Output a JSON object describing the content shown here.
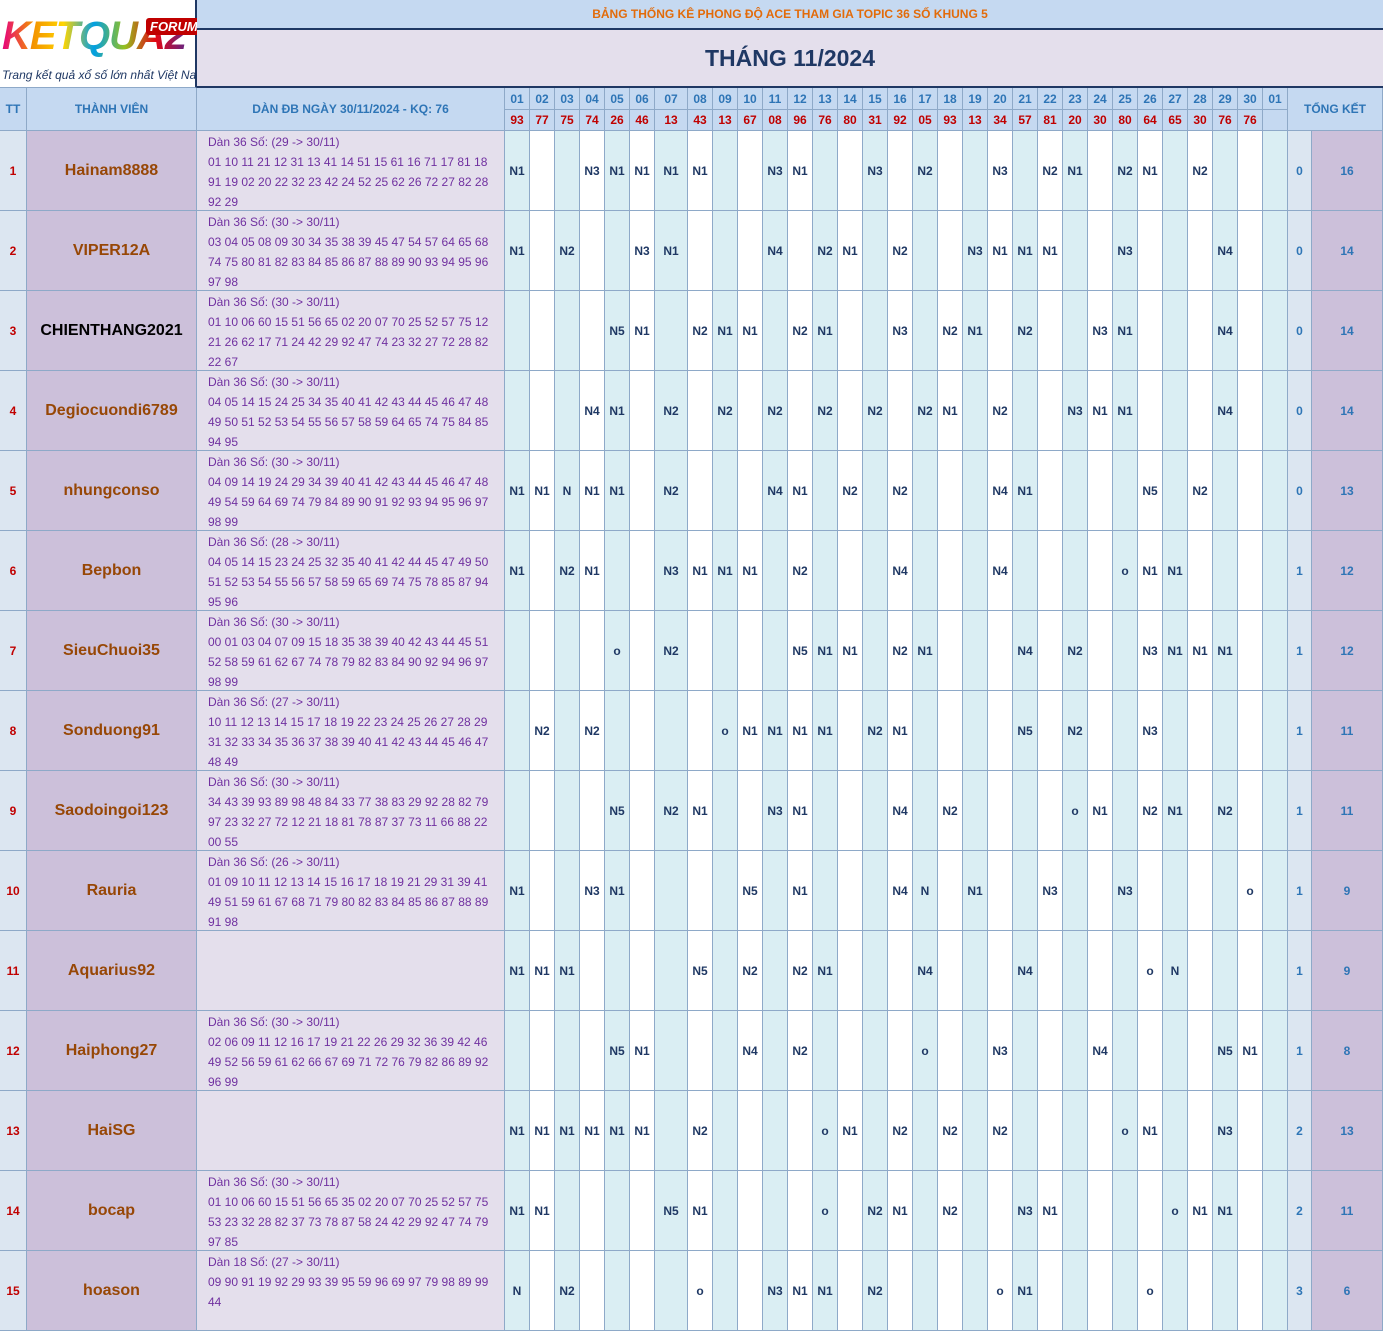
{
  "header": {
    "logo": {
      "brand": "KETQUA2",
      "badge": "FORUM",
      "tagline": "Trang kết quả xổ số lớn nhất Việt Nam"
    },
    "title": "BẢNG THỐNG KÊ PHONG ĐỘ ACE THAM GIA TOPIC 36 SỐ KHUNG 5",
    "month": "THÁNG 11/2024"
  },
  "columns": {
    "tt": "TT",
    "member": "THÀNH VIÊN",
    "dan": "DÀN ĐB NGÀY 30/11/2024 - KQ: 76",
    "total": "TỔNG KẾT",
    "days": [
      "01",
      "02",
      "03",
      "04",
      "05",
      "06",
      "07",
      "08",
      "09",
      "10",
      "11",
      "12",
      "13",
      "14",
      "15",
      "16",
      "17",
      "18",
      "19",
      "20",
      "21",
      "22",
      "23",
      "24",
      "25",
      "26",
      "27",
      "28",
      "29",
      "30",
      "01"
    ],
    "results": [
      "93",
      "77",
      "75",
      "74",
      "26",
      "46",
      "13",
      "43",
      "13",
      "67",
      "08",
      "96",
      "76",
      "80",
      "31",
      "92",
      "05",
      "93",
      "13",
      "34",
      "57",
      "81",
      "20",
      "30",
      "80",
      "64",
      "65",
      "30",
      "76",
      "76",
      null
    ]
  },
  "rows": [
    {
      "tt": 1,
      "member": "Hainam8888",
      "dan_title": "Dàn 36 Số: (29 -> 30/11)",
      "dan_numbers": "01 10 11 21 12 31 13 41 14 51 15 61 16 71 17 81 18 91 19 02 20 22 32 23 42 24 52 25 62 26 72 27 82 28 92 29",
      "marks": [
        "N1",
        null,
        null,
        "N3",
        "N1",
        "N1",
        "N1",
        "N1",
        null,
        null,
        "N3",
        "N1",
        null,
        null,
        "N3",
        null,
        "N2",
        null,
        null,
        "N3",
        null,
        "N2",
        "N1",
        null,
        "N2",
        "N1",
        null,
        "N2",
        null,
        null,
        null
      ],
      "totals": [
        0,
        16
      ]
    },
    {
      "tt": 2,
      "member": "VIPER12A",
      "dan_title": "Dàn 36 Số: (30 -> 30/11)",
      "dan_numbers": "03 04 05 08 09 30 34 35 38 39 45 47 54 57 64 65 68 74 75 80 81 82 83 84 85 86 87 88 89 90 93 94 95 96 97 98",
      "marks": [
        "N1",
        null,
        "N2",
        null,
        null,
        "N3",
        "N1",
        null,
        null,
        null,
        "N4",
        null,
        "N2",
        "N1",
        null,
        "N2",
        null,
        null,
        "N3",
        "N1",
        "N1",
        "N1",
        null,
        null,
        "N3",
        null,
        null,
        null,
        "N4",
        null,
        null
      ],
      "totals": [
        0,
        14
      ]
    },
    {
      "tt": 3,
      "member": "CHIENTHANG2021",
      "dan_title": "Dàn 36 Số: (30 -> 30/11)",
      "dan_numbers": "01 10 06 60 15 51 56 65 02 20 07 70 25 52 57 75 12 21 26 62 17 71 24 42 29 92 47 74 23 32 27 72 28 82 22 67",
      "marks": [
        null,
        null,
        null,
        null,
        "N5",
        "N1",
        null,
        "N2",
        "N1",
        "N1",
        null,
        "N2",
        "N1",
        null,
        null,
        "N3",
        null,
        "N2",
        "N1",
        null,
        "N2",
        null,
        null,
        "N3",
        "N1",
        null,
        null,
        null,
        "N4",
        null,
        null
      ],
      "totals": [
        0,
        14
      ]
    },
    {
      "tt": 4,
      "member": "Degiocuondi6789",
      "dan_title": "Dàn 36 Số: (30 -> 30/11)",
      "dan_numbers": "04 05 14 15 24 25 34 35 40 41 42 43 44 45 46 47 48 49 50 51 52 53 54 55 56 57 58 59 64 65 74 75 84 85 94 95",
      "marks": [
        null,
        null,
        null,
        "N4",
        "N1",
        null,
        "N2",
        null,
        "N2",
        null,
        "N2",
        null,
        "N2",
        null,
        "N2",
        null,
        "N2",
        "N1",
        null,
        "N2",
        null,
        null,
        "N3",
        "N1",
        "N1",
        null,
        null,
        null,
        "N4",
        null,
        null
      ],
      "totals": [
        0,
        14
      ]
    },
    {
      "tt": 5,
      "member": "nhungconso",
      "dan_title": "Dàn 36 Số: (30 -> 30/11)",
      "dan_numbers": "04 09 14 19 24 29 34 39 40 41 42 43 44 45 46 47 48 49 54 59 64 69 74 79 84 89 90 91 92 93 94 95 96 97 98 99",
      "marks": [
        "N1",
        "N1",
        "N",
        "N1",
        "N1",
        null,
        "N2",
        null,
        null,
        null,
        "N4",
        "N1",
        null,
        "N2",
        null,
        "N2",
        null,
        null,
        null,
        "N4",
        "N1",
        null,
        null,
        null,
        null,
        "N5",
        null,
        "N2",
        null,
        null,
        null
      ],
      "totals": [
        0,
        13
      ]
    },
    {
      "tt": 6,
      "member": "Bepbon",
      "dan_title": "Dàn 36 Số: (28 -> 30/11)",
      "dan_numbers": "04 05 14 15 23 24 25 32 35 40 41 42 44 45 47 49 50 51 52 53 54 55 56 57 58 59 65 69 74 75 78 85 87 94 95 96",
      "marks": [
        "N1",
        null,
        "N2",
        "N1",
        null,
        null,
        "N3",
        "N1",
        "N1",
        "N1",
        null,
        "N2",
        null,
        null,
        null,
        "N4",
        null,
        null,
        null,
        "N4",
        null,
        null,
        null,
        null,
        "o",
        "N1",
        "N1",
        null,
        null,
        null,
        null
      ],
      "totals": [
        1,
        12
      ]
    },
    {
      "tt": 7,
      "member": "SieuChuoi35",
      "dan_title": "Dàn 36 Số: (30 -> 30/11)",
      "dan_numbers": "00 01 03 04 07 09 15 18 35 38 39 40 42 43 44 45 51 52 58 59 61 62 67 74 78 79 82 83 84 90 92 94 96 97 98 99",
      "marks": [
        null,
        null,
        null,
        null,
        "o",
        null,
        "N2",
        null,
        null,
        null,
        null,
        "N5",
        "N1",
        "N1",
        null,
        "N2",
        "N1",
        null,
        null,
        null,
        "N4",
        null,
        "N2",
        null,
        null,
        "N3",
        "N1",
        "N1",
        "N1",
        null,
        null
      ],
      "totals": [
        1,
        12
      ]
    },
    {
      "tt": 8,
      "member": "Sonduong91",
      "dan_title": "Dàn 36 Số: (27 -> 30/11)",
      "dan_numbers": "10 11 12 13 14 15 17 18 19 22 23 24 25 26 27 28 29 31 32 33 34 35 36 37 38 39 40 41 42 43 44 45 46 47 48 49",
      "marks": [
        null,
        "N2",
        null,
        "N2",
        null,
        null,
        null,
        null,
        "o",
        "N1",
        "N1",
        "N1",
        "N1",
        null,
        "N2",
        "N1",
        null,
        null,
        null,
        null,
        "N5",
        null,
        "N2",
        null,
        null,
        "N3",
        null,
        null,
        null,
        null,
        null
      ],
      "totals": [
        1,
        11
      ]
    },
    {
      "tt": 9,
      "member": "Saodoingoi123",
      "dan_title": "Dàn 36 Số: (30 -> 30/11)",
      "dan_numbers": "34 43 39 93 89 98 48 84 33 77 38 83 29 92 28 82 79 97 23 32 27 72 12 21 18 81 78 87 37 73 11 66 88 22 00 55",
      "marks": [
        null,
        null,
        null,
        null,
        "N5",
        null,
        "N2",
        "N1",
        null,
        null,
        "N3",
        "N1",
        null,
        null,
        null,
        "N4",
        null,
        "N2",
        null,
        null,
        null,
        null,
        "o",
        "N1",
        null,
        "N2",
        "N1",
        null,
        "N2",
        null,
        null
      ],
      "totals": [
        1,
        11
      ]
    },
    {
      "tt": 10,
      "member": "Rauria",
      "dan_title": "Dàn 36 Số: (26 -> 30/11)",
      "dan_numbers": "01 09 10 11 12 13 14 15 16 17 18 19 21 29 31 39 41 49 51 59 61 67 68 71 79 80 82 83 84 85 86 87 88 89 91 98",
      "marks": [
        "N1",
        null,
        null,
        "N3",
        "N1",
        null,
        null,
        null,
        null,
        "N5",
        null,
        "N1",
        null,
        null,
        null,
        "N4",
        "N",
        null,
        "N1",
        null,
        null,
        "N3",
        null,
        null,
        "N3",
        null,
        null,
        null,
        null,
        "o",
        null
      ],
      "totals": [
        1,
        9
      ]
    },
    {
      "tt": 11,
      "member": "Aquarius92",
      "marks": [
        "N1",
        "N1",
        "N1",
        null,
        null,
        null,
        null,
        "N5",
        null,
        "N2",
        null,
        "N2",
        "N1",
        null,
        null,
        null,
        "N4",
        null,
        null,
        null,
        "N4",
        null,
        null,
        null,
        null,
        "o",
        "N",
        null,
        null,
        null,
        null
      ],
      "totals": [
        1,
        9
      ]
    },
    {
      "tt": 12,
      "member": "Haiphong27",
      "dan_title": "Dàn 36 Số: (30 -> 30/11)",
      "dan_numbers": "02 06 09 11 12 16 17 19 21 22 26 29 32 36 39 42 46 49 52 56 59 61 62 66 67 69 71 72 76 79 82 86 89 92 96 99",
      "marks": [
        null,
        null,
        null,
        null,
        "N5",
        "N1",
        null,
        null,
        null,
        "N4",
        null,
        "N2",
        null,
        null,
        null,
        null,
        "o",
        null,
        null,
        "N3",
        null,
        null,
        null,
        "N4",
        null,
        null,
        null,
        null,
        "N5",
        "N1",
        null
      ],
      "totals": [
        1,
        8
      ]
    },
    {
      "tt": 13,
      "member": "HaiSG",
      "marks": [
        "N1",
        "N1",
        "N1",
        "N1",
        "N1",
        "N1",
        null,
        "N2",
        null,
        null,
        null,
        null,
        "o",
        "N1",
        null,
        "N2",
        null,
        "N2",
        null,
        "N2",
        null,
        null,
        null,
        null,
        "o",
        "N1",
        null,
        null,
        "N3",
        null,
        null
      ],
      "totals": [
        2,
        13
      ]
    },
    {
      "tt": 14,
      "member": "bocap",
      "dan_title": "Dàn 36 Số: (30 -> 30/11)",
      "dan_numbers": "01 10 06 60 15 51 56 65 35 02 20 07 70 25 52 57 75 53 23 32 28 82 37 73 78 87 58 24 42 29 92 47 74 79 97 85",
      "marks": [
        "N1",
        "N1",
        null,
        null,
        null,
        null,
        "N5",
        "N1",
        null,
        null,
        null,
        null,
        "o",
        null,
        "N2",
        "N1",
        null,
        "N2",
        null,
        null,
        "N3",
        "N1",
        null,
        null,
        null,
        null,
        "o",
        "N1",
        "N1",
        null,
        null
      ],
      "totals": [
        2,
        11
      ]
    },
    {
      "tt": 15,
      "member": "hoason",
      "dan_title": "Dàn 18 Số: (27 -> 30/11)",
      "dan_numbers": "09 90 91 19 92 29 93 39 95 59 96 69 97 79 98 89 99 44",
      "marks": [
        "N",
        null,
        "N2",
        null,
        null,
        null,
        null,
        "o",
        null,
        null,
        "N3",
        "N1",
        "N1",
        null,
        "N2",
        null,
        null,
        null,
        null,
        "o",
        "N1",
        null,
        null,
        null,
        null,
        "o",
        null,
        null,
        null,
        null,
        null
      ],
      "totals": [
        3,
        6
      ]
    }
  ]
}
